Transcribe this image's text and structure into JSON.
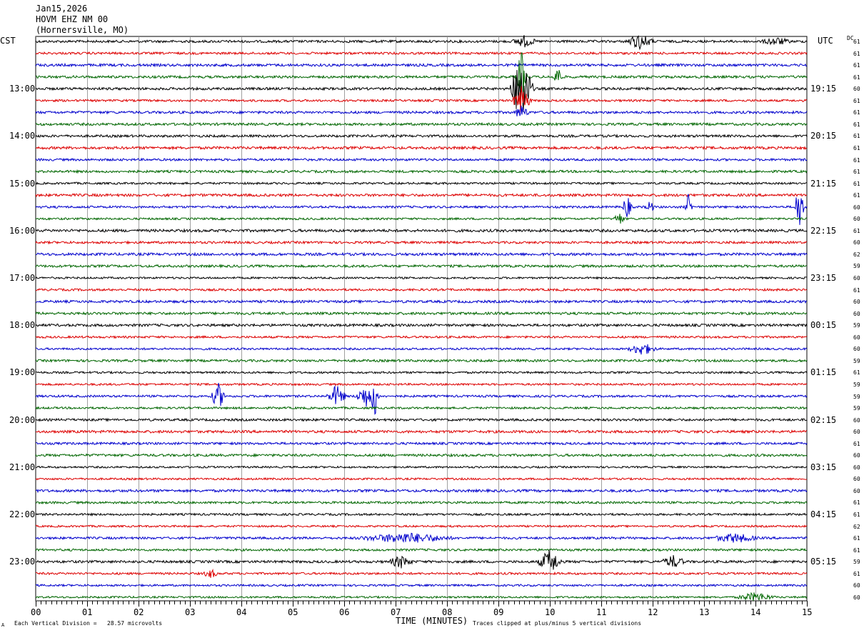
{
  "header": {
    "date": "Jan15,2026",
    "station": "HOVM EHZ NM 00",
    "location": "(Hornersville, MO)"
  },
  "labels": {
    "left_tz": "CST",
    "right_tz": "UTC",
    "dc": "DC",
    "xlabel": "TIME (MINUTES)",
    "scale_note": "Each Vertical Division =   28.57 microvolts",
    "clip_note": "Traces clipped at plus/minus 5 vertical divisions",
    "corner_mark": "A"
  },
  "chart_data": {
    "type": "line",
    "subtype": "helicorder",
    "xlim": [
      0,
      15
    ],
    "x_ticks": [
      "00",
      "01",
      "02",
      "03",
      "04",
      "05",
      "06",
      "07",
      "08",
      "09",
      "10",
      "11",
      "12",
      "13",
      "14",
      "15"
    ],
    "trace_count": 48,
    "trace_minutes": 15,
    "trace_colors": [
      "#000000",
      "#dd0000",
      "#0000cc",
      "#006600"
    ],
    "grid": true,
    "left_hour_labels": [
      "13:00",
      "14:00",
      "15:00",
      "16:00",
      "17:00",
      "18:00",
      "19:00",
      "20:00",
      "21:00",
      "22:00",
      "23:00"
    ],
    "right_hour_labels": [
      "19:15",
      "20:15",
      "21:15",
      "22:15",
      "23:15",
      "00:15",
      "01:15",
      "02:15",
      "03:15",
      "04:15",
      "05:15"
    ],
    "hour_label_first_trace": 4,
    "dc_values": [
      "61",
      "61",
      "61",
      "61",
      "60",
      "61",
      "61",
      "61",
      "61",
      "61",
      "61",
      "61",
      "61",
      "61",
      "60",
      "60",
      "61",
      "60",
      "62",
      "59",
      "60",
      "61",
      "60",
      "60",
      "59",
      "60",
      "60",
      "59",
      "61",
      "59",
      "59",
      "59",
      "60",
      "60",
      "61",
      "60",
      "60",
      "60",
      "60",
      "61",
      "61",
      "62",
      "61",
      "61",
      "59",
      "61",
      "60",
      "60"
    ],
    "events": [
      {
        "trace": 0,
        "minute": 9.5,
        "amp": 0.45,
        "dur": 0.25
      },
      {
        "trace": 0,
        "minute": 11.75,
        "amp": 0.6,
        "dur": 0.3
      },
      {
        "trace": 0,
        "minute": 14.4,
        "amp": 0.3,
        "dur": 0.3
      },
      {
        "trace": 3,
        "minute": 9.45,
        "amp": 2.2,
        "dur": 0.12
      },
      {
        "trace": 3,
        "minute": 10.15,
        "amp": 0.9,
        "dur": 0.1
      },
      {
        "trace": 4,
        "minute": 9.45,
        "amp": 3.0,
        "dur": 0.25
      },
      {
        "trace": 5,
        "minute": 9.45,
        "amp": 1.2,
        "dur": 0.2
      },
      {
        "trace": 6,
        "minute": 9.45,
        "amp": 0.6,
        "dur": 0.15
      },
      {
        "trace": 14,
        "minute": 11.5,
        "amp": 1.0,
        "dur": 0.1
      },
      {
        "trace": 14,
        "minute": 11.95,
        "amp": 0.6,
        "dur": 0.08
      },
      {
        "trace": 14,
        "minute": 12.7,
        "amp": 1.1,
        "dur": 0.08
      },
      {
        "trace": 14,
        "minute": 14.85,
        "amp": 2.2,
        "dur": 0.1
      },
      {
        "trace": 15,
        "minute": 11.35,
        "amp": 0.5,
        "dur": 0.12
      },
      {
        "trace": 26,
        "minute": 11.8,
        "amp": 0.5,
        "dur": 0.3
      },
      {
        "trace": 30,
        "minute": 3.55,
        "amp": 1.1,
        "dur": 0.15
      },
      {
        "trace": 30,
        "minute": 5.85,
        "amp": 0.9,
        "dur": 0.2
      },
      {
        "trace": 30,
        "minute": 6.45,
        "amp": 1.0,
        "dur": 0.25
      },
      {
        "trace": 30,
        "minute": 6.6,
        "amp": 1.6,
        "dur": 0.06
      },
      {
        "trace": 42,
        "minute": 7.2,
        "amp": 0.4,
        "dur": 1.0
      },
      {
        "trace": 42,
        "minute": 13.6,
        "amp": 0.35,
        "dur": 0.5
      },
      {
        "trace": 44,
        "minute": 7.1,
        "amp": 0.5,
        "dur": 0.25
      },
      {
        "trace": 44,
        "minute": 10.0,
        "amp": 1.0,
        "dur": 0.25
      },
      {
        "trace": 44,
        "minute": 12.4,
        "amp": 0.5,
        "dur": 0.25
      },
      {
        "trace": 45,
        "minute": 3.4,
        "amp": 0.35,
        "dur": 0.15
      },
      {
        "trace": 47,
        "minute": 14.0,
        "amp": 0.35,
        "dur": 0.4
      }
    ]
  }
}
